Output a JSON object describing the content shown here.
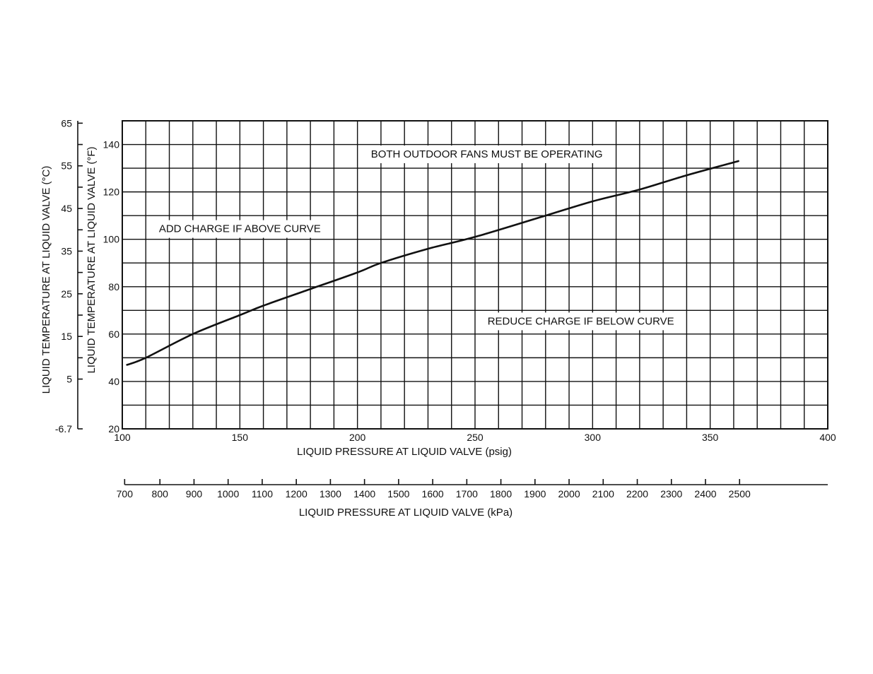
{
  "chart_data": {
    "type": "line",
    "x": [
      102,
      110,
      130,
      150,
      160,
      180,
      200,
      210,
      230,
      250,
      280,
      300,
      320,
      340,
      362
    ],
    "series": [
      {
        "values": [
          47,
          50,
          60,
          68,
          72,
          79,
          86,
          90,
          96,
          101,
          110,
          116,
          121,
          127,
          133
        ]
      }
    ],
    "xlim": [
      100,
      400
    ],
    "ylim": [
      20,
      150
    ],
    "x_ticks": [
      100,
      150,
      200,
      250,
      300,
      350,
      400
    ],
    "y_ticks": [
      20,
      40,
      60,
      80,
      100,
      120,
      140
    ],
    "grid": true,
    "xlabel": "LIQUID PRESSURE AT LIQUID VALVE (psig)",
    "ylabel": "LIQUID TEMPERATURE AT LIQUID VALVE (°F)",
    "secondary_y": {
      "label": "LIQUID TEMPERATURE AT LIQUID VALVE (°C)",
      "ticks": [
        "65",
        "55",
        "45",
        "35",
        "25",
        "15",
        "5",
        "-6.7"
      ],
      "tick_values_f": [
        149,
        131,
        113,
        95,
        77,
        59,
        41,
        20
      ]
    },
    "secondary_x": {
      "label": "LIQUID PRESSURE AT LIQUID VALVE (kPa)",
      "ticks": [
        "700",
        "800",
        "900",
        "1000",
        "1100",
        "1200",
        "1300",
        "1400",
        "1500",
        "1600",
        "1700",
        "1800",
        "1900",
        "2000",
        "2100",
        "2200",
        "2300",
        "2400",
        "2500"
      ],
      "tick_values_psig": [
        101,
        116,
        130.5,
        145,
        159.5,
        174,
        188.5,
        203,
        217.5,
        232,
        246.5,
        261,
        275.5,
        290,
        304.5,
        319,
        333.5,
        348,
        362.5
      ]
    },
    "annotations": [
      {
        "text": "BOTH OUTDOOR FANS MUST BE OPERATING",
        "x": 255,
        "y": 136
      },
      {
        "text": "ADD CHARGE IF ABOVE CURVE",
        "x": 150,
        "y": 104.5
      },
      {
        "text": "REDUCE CHARGE IF BELOW CURVE",
        "x": 295,
        "y": 65.5
      }
    ]
  }
}
